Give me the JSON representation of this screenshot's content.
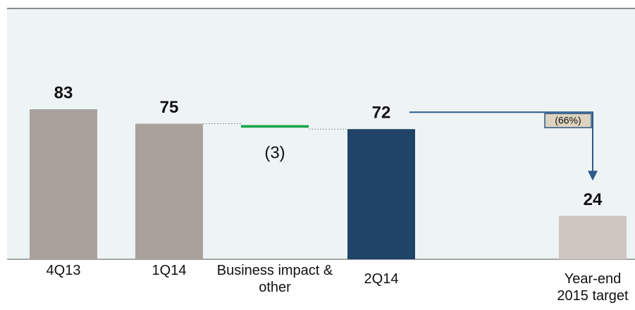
{
  "chart_data": {
    "type": "waterfall",
    "categories": [
      "4Q13",
      "1Q14",
      "Business impact & other",
      "2Q14",
      "Year-end 2015 target"
    ],
    "values": [
      83,
      75,
      -3,
      72,
      24
    ],
    "value_labels": [
      "83",
      "75",
      "(3)",
      "72",
      "24"
    ],
    "kinds": [
      "total",
      "total",
      "delta",
      "total",
      "total"
    ],
    "colors": [
      "#a9a29c",
      "#a9a29c",
      "#17a74a",
      "#1f4468",
      "#cdc6c1"
    ],
    "annotations": [
      {
        "text": "(66%)",
        "from": 3,
        "to": 4
      }
    ]
  }
}
